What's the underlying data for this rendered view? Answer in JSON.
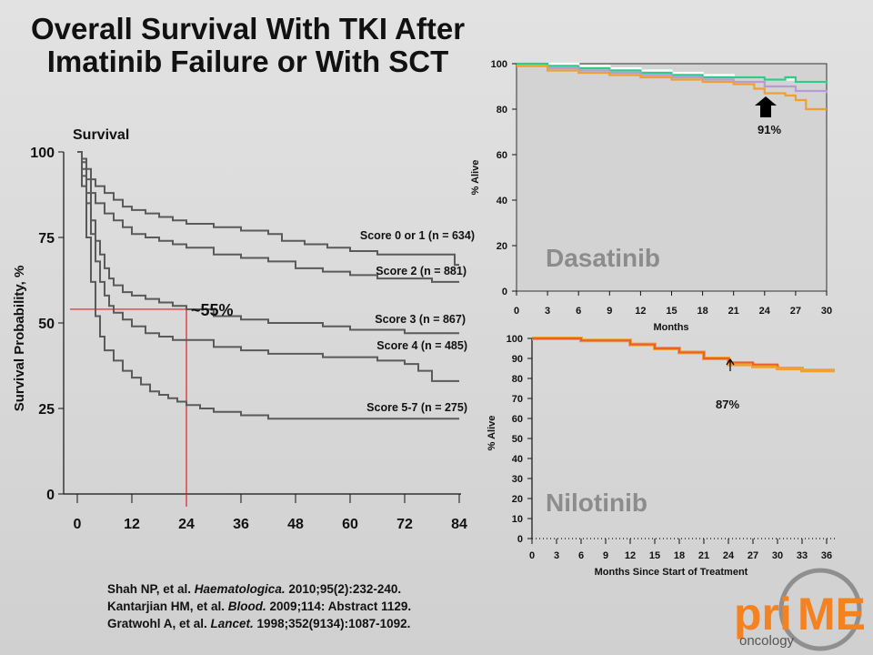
{
  "slide": {
    "title_line1": "Overall Survival With TKI After",
    "title_line2": "Imatinib Failure or With SCT"
  },
  "chart_data": [
    {
      "type": "line",
      "id": "sct",
      "title": "Survival",
      "xlabel": "",
      "ylabel": "Survival Probability, %",
      "xlim": [
        0,
        84
      ],
      "ylim": [
        0,
        100
      ],
      "xticks": [
        0,
        12,
        24,
        36,
        48,
        60,
        72,
        84
      ],
      "yticks": [
        0,
        25,
        50,
        75,
        100
      ],
      "step": true,
      "color": "#5a5a5a",
      "series": [
        {
          "name": "Score 0 or 1 (n = 634)",
          "points": [
            [
              0,
              100
            ],
            [
              1,
              98
            ],
            [
              2,
              95
            ],
            [
              3,
              92
            ],
            [
              4,
              90
            ],
            [
              6,
              88
            ],
            [
              8,
              86
            ],
            [
              10,
              84
            ],
            [
              12,
              83
            ],
            [
              15,
              82
            ],
            [
              18,
              81
            ],
            [
              21,
              80
            ],
            [
              24,
              79
            ],
            [
              30,
              78
            ],
            [
              36,
              77
            ],
            [
              42,
              76
            ],
            [
              45,
              74
            ],
            [
              50,
              73
            ],
            [
              55,
              72
            ],
            [
              60,
              71
            ],
            [
              66,
              70
            ],
            [
              72,
              70
            ],
            [
              78,
              70
            ],
            [
              82,
              70
            ],
            [
              83,
              67
            ],
            [
              84,
              67
            ]
          ]
        },
        {
          "name": "Score 2 (n = 881)",
          "points": [
            [
              0,
              100
            ],
            [
              1,
              97
            ],
            [
              2,
              92
            ],
            [
              3,
              88
            ],
            [
              4,
              85
            ],
            [
              6,
              82
            ],
            [
              8,
              80
            ],
            [
              10,
              78
            ],
            [
              12,
              76
            ],
            [
              15,
              75
            ],
            [
              18,
              74
            ],
            [
              21,
              73
            ],
            [
              24,
              72
            ],
            [
              30,
              70
            ],
            [
              36,
              69
            ],
            [
              42,
              68
            ],
            [
              48,
              66
            ],
            [
              54,
              65
            ],
            [
              60,
              64
            ],
            [
              66,
              63
            ],
            [
              72,
              63
            ],
            [
              78,
              62
            ],
            [
              84,
              62
            ]
          ]
        },
        {
          "name": "Score 3 (n = 867)",
          "points": [
            [
              0,
              100
            ],
            [
              1,
              95
            ],
            [
              2,
              88
            ],
            [
              3,
              80
            ],
            [
              4,
              74
            ],
            [
              5,
              70
            ],
            [
              6,
              66
            ],
            [
              7,
              63
            ],
            [
              8,
              61
            ],
            [
              10,
              59
            ],
            [
              12,
              58
            ],
            [
              15,
              57
            ],
            [
              18,
              56
            ],
            [
              21,
              55
            ],
            [
              24,
              54
            ],
            [
              30,
              52
            ],
            [
              36,
              51
            ],
            [
              42,
              50
            ],
            [
              48,
              50
            ],
            [
              54,
              49
            ],
            [
              60,
              48
            ],
            [
              66,
              48
            ],
            [
              72,
              47
            ],
            [
              84,
              47
            ]
          ]
        },
        {
          "name": "Score 4 (n = 485)",
          "points": [
            [
              0,
              100
            ],
            [
              1,
              93
            ],
            [
              2,
              85
            ],
            [
              3,
              76
            ],
            [
              4,
              68
            ],
            [
              5,
              62
            ],
            [
              6,
              58
            ],
            [
              7,
              55
            ],
            [
              8,
              53
            ],
            [
              10,
              51
            ],
            [
              12,
              49
            ],
            [
              15,
              47
            ],
            [
              18,
              46
            ],
            [
              21,
              45
            ],
            [
              24,
              45
            ],
            [
              30,
              43
            ],
            [
              36,
              42
            ],
            [
              42,
              41
            ],
            [
              48,
              41
            ],
            [
              54,
              40
            ],
            [
              60,
              40
            ],
            [
              66,
              39
            ],
            [
              72,
              38
            ],
            [
              75,
              36
            ],
            [
              78,
              33
            ],
            [
              84,
              33
            ]
          ]
        },
        {
          "name": "Score 5-7 (n = 275)",
          "points": [
            [
              0,
              100
            ],
            [
              1,
              90
            ],
            [
              2,
              75
            ],
            [
              3,
              62
            ],
            [
              4,
              52
            ],
            [
              5,
              46
            ],
            [
              6,
              42
            ],
            [
              8,
              39
            ],
            [
              10,
              36
            ],
            [
              12,
              34
            ],
            [
              14,
              32
            ],
            [
              16,
              30
            ],
            [
              18,
              29
            ],
            [
              20,
              28
            ],
            [
              22,
              27
            ],
            [
              24,
              26
            ],
            [
              27,
              25
            ],
            [
              30,
              24
            ],
            [
              36,
              23
            ],
            [
              42,
              22
            ],
            [
              48,
              22
            ],
            [
              60,
              22
            ],
            [
              72,
              22
            ],
            [
              84,
              22
            ]
          ]
        }
      ],
      "annotation": {
        "text": "~55%",
        "x": 24,
        "y": 54
      }
    },
    {
      "type": "line",
      "id": "dasatinib",
      "title": "Dasatinib",
      "xlabel": "Months",
      "ylabel": "% Alive",
      "xlim": [
        0,
        30
      ],
      "ylim": [
        0,
        100
      ],
      "xticks": [
        0,
        3,
        6,
        9,
        12,
        15,
        18,
        21,
        24,
        27,
        30
      ],
      "yticks": [
        0,
        20,
        40,
        60,
        80,
        100
      ],
      "step": true,
      "series": [
        {
          "color": "#ffffff",
          "points": [
            [
              0,
              100
            ],
            [
              3,
              100
            ],
            [
              6,
              99
            ],
            [
              9,
              98
            ],
            [
              12,
              97
            ],
            [
              15,
              96
            ],
            [
              18,
              95
            ],
            [
              21,
              94
            ],
            [
              24,
              93
            ],
            [
              27,
              92
            ],
            [
              30,
              92
            ]
          ]
        },
        {
          "color": "#2ecc8a",
          "points": [
            [
              0,
              100
            ],
            [
              3,
              99
            ],
            [
              6,
              98
            ],
            [
              9,
              97
            ],
            [
              12,
              96
            ],
            [
              15,
              95
            ],
            [
              18,
              94
            ],
            [
              21,
              94
            ],
            [
              24,
              93
            ],
            [
              26,
              94
            ],
            [
              27,
              92
            ],
            [
              30,
              91
            ]
          ]
        },
        {
          "color": "#b79ad6",
          "points": [
            [
              0,
              99
            ],
            [
              3,
              98
            ],
            [
              6,
              97
            ],
            [
              9,
              96
            ],
            [
              12,
              95
            ],
            [
              15,
              94
            ],
            [
              18,
              93
            ],
            [
              21,
              92
            ],
            [
              24,
              90
            ],
            [
              27,
              88
            ],
            [
              30,
              87
            ]
          ]
        },
        {
          "color": "#f0a030",
          "points": [
            [
              0,
              99
            ],
            [
              3,
              97
            ],
            [
              6,
              96
            ],
            [
              9,
              95
            ],
            [
              12,
              94
            ],
            [
              15,
              93
            ],
            [
              18,
              92
            ],
            [
              21,
              91
            ],
            [
              23,
              89
            ],
            [
              24,
              87
            ],
            [
              26,
              86
            ],
            [
              27,
              84
            ],
            [
              28,
              80
            ],
            [
              30,
              80
            ]
          ]
        }
      ],
      "annotation": {
        "text": "91%",
        "x": 24,
        "y": 91
      }
    },
    {
      "type": "line",
      "id": "nilotinib",
      "title": "Nilotinib",
      "xlabel": "Months  Since Start of Treatment",
      "ylabel": "% Alive",
      "xlim": [
        0,
        37
      ],
      "ylim": [
        0,
        100
      ],
      "xticks": [
        0,
        3,
        6,
        9,
        12,
        15,
        18,
        21,
        24,
        27,
        30,
        33,
        36
      ],
      "yticks": [
        0,
        10,
        20,
        30,
        40,
        50,
        60,
        70,
        80,
        90,
        100
      ],
      "step": true,
      "series": [
        {
          "color": "#f0a030",
          "points": [
            [
              0,
              100
            ],
            [
              3,
              100
            ],
            [
              6,
              99
            ],
            [
              9,
              99
            ],
            [
              12,
              97
            ],
            [
              15,
              95
            ],
            [
              18,
              93
            ],
            [
              21,
              90
            ],
            [
              24,
              87
            ],
            [
              27,
              86
            ],
            [
              30,
              85
            ],
            [
              33,
              84
            ],
            [
              36,
              84
            ],
            [
              37,
              84
            ]
          ]
        },
        {
          "color": "#e8602a",
          "points": [
            [
              0,
              100
            ],
            [
              3,
              100
            ],
            [
              6,
              99
            ],
            [
              9,
              99
            ],
            [
              12,
              97
            ],
            [
              15,
              95
            ],
            [
              18,
              93
            ],
            [
              21,
              90
            ],
            [
              24,
              88
            ],
            [
              27,
              87
            ],
            [
              30,
              86
            ]
          ]
        }
      ],
      "annotation": {
        "text": "87%",
        "x": 24,
        "y": 88
      }
    }
  ],
  "references": [
    {
      "authors": "Shah NP, et al. ",
      "journal": "Haematologica.",
      "details": " 2010;95(2):232-240."
    },
    {
      "authors": "Kantarjian HM, et al. ",
      "journal": "Blood.",
      "details": " 2009;114: Abstract 1129."
    },
    {
      "authors": "Gratwohl A, et al. ",
      "journal": "Lancet.",
      "details": " 1998;352(9134):1087-1092."
    }
  ],
  "logo": {
    "pri": "pri",
    "me": "ME",
    "sub": "oncology"
  }
}
